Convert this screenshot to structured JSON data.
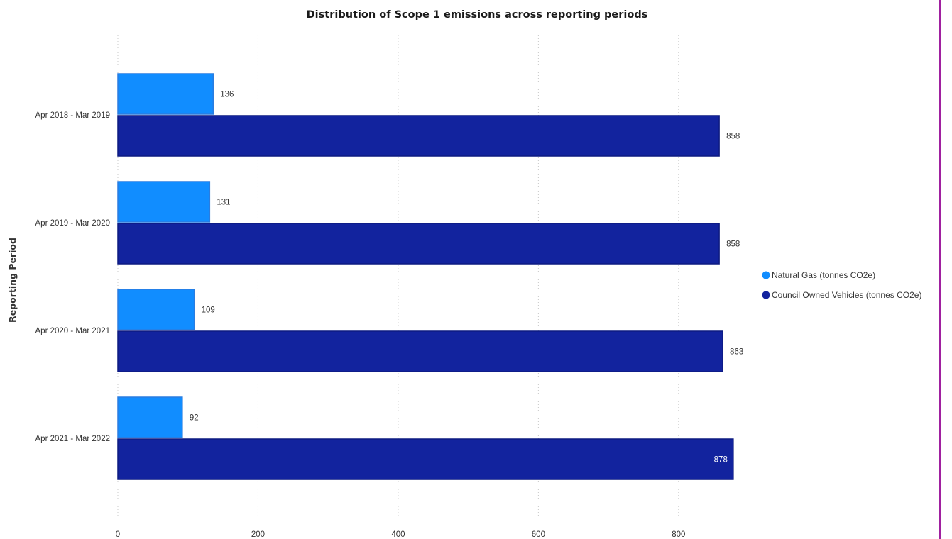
{
  "colors": {
    "natural_gas": "#118dff",
    "vehicles": "#12239e",
    "frame_border": "#a020a0"
  },
  "chart_data": {
    "type": "bar",
    "orientation": "horizontal",
    "title": "Distribution of Scope 1 emissions across reporting periods",
    "ylabel": "Reporting Period",
    "xlabel": "",
    "categories": [
      "Apr 2018 - Mar 2019",
      "Apr 2019 - Mar 2020",
      "Apr 2020 - Mar 2021",
      "Apr 2021 - Mar 2022"
    ],
    "series": [
      {
        "name": "Natural Gas (tonnes CO2e)",
        "values": [
          136,
          131,
          109,
          92
        ],
        "color": "#118dff"
      },
      {
        "name": "Council Owned Vehicles (tonnes CO2e)",
        "values": [
          858,
          858,
          863,
          878
        ],
        "color": "#12239e"
      }
    ],
    "xlim": [
      0,
      900
    ],
    "xticks": [
      0,
      200,
      400,
      600,
      800
    ],
    "grid": "vertical dotted",
    "legend_position": "right"
  }
}
